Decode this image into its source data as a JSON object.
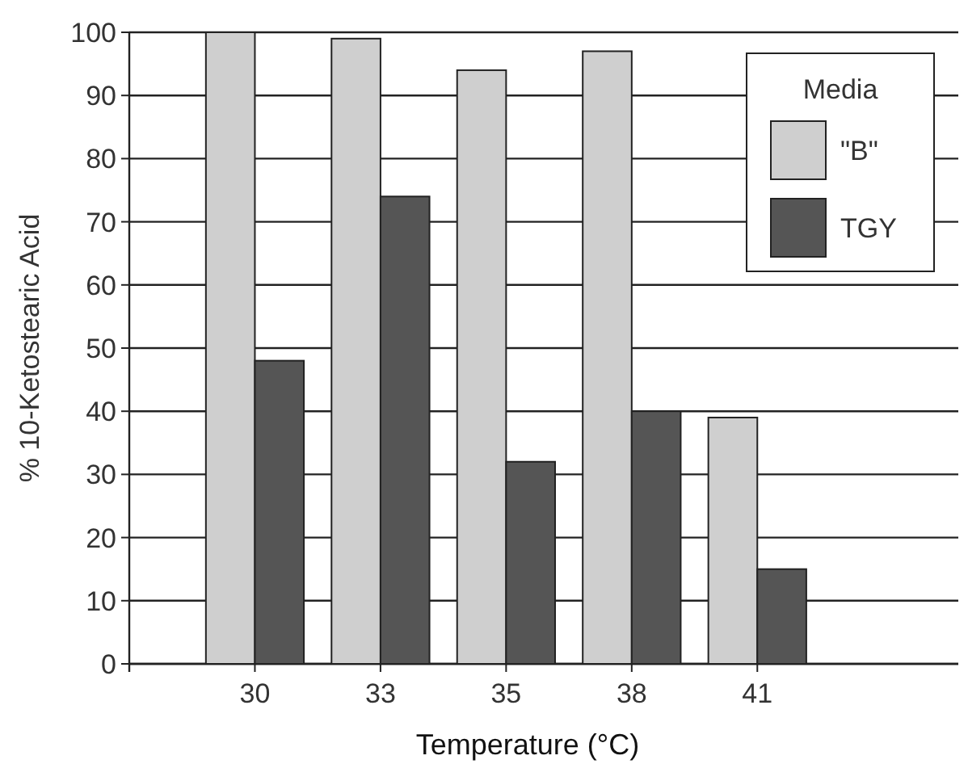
{
  "chart_data": {
    "type": "bar",
    "xlabel": "Temperature (°C)",
    "ylabel": "% 10-Ketostearic Acid",
    "legend_title": "Media",
    "categories": [
      "30",
      "33",
      "35",
      "38",
      "41"
    ],
    "series": [
      {
        "name": "\"B\"",
        "color": "#cfcfcf",
        "values": [
          100,
          99,
          94,
          97,
          39
        ]
      },
      {
        "name": "TGY",
        "color": "#555555",
        "values": [
          48,
          74,
          32,
          40,
          15
        ]
      }
    ],
    "ylim": [
      0,
      100
    ],
    "yticks": [
      0,
      10,
      20,
      30,
      40,
      50,
      60,
      70,
      80,
      90,
      100
    ],
    "grid": "y",
    "legend": "top right"
  }
}
